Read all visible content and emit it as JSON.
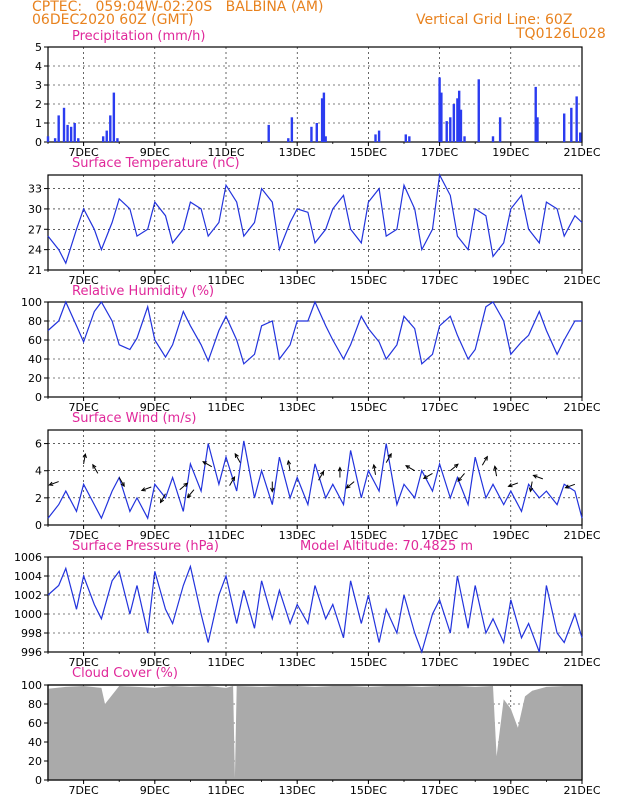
{
  "header": {
    "line1_left": "CPTEC:   059:04W-02:20S   BALBINA (AM)",
    "line2_left": "06DEC2020 60Z (GMT)",
    "line1_right": "Vertical Grid Line: 60Z",
    "line2_right": "TQ0126L028"
  },
  "panel_titles": {
    "precip": "Precipitation (mm/h)",
    "temp": "Surface Temperature (nC)",
    "rh": "Relative Humidity (%)",
    "wind": "Surface Wind (m/s)",
    "pressure": "Surface Pressure (hPa)",
    "altitude": "Model Altitude: 70.4825 m",
    "cloud": "Cloud Cover (%)"
  },
  "colors": {
    "series": "#2233dd",
    "bar": "#2b3cf0",
    "cloud": "#aaaaaa",
    "header": "#e8821e",
    "title": "#e0289a"
  },
  "chart_data": [
    {
      "type": "bar",
      "title": "Precipitation (mm/h)",
      "x": [
        "6DEC",
        "6.2",
        "6.3",
        "6.45",
        "6.55",
        "6.65",
        "6.75",
        "6.85",
        "7.55",
        "7.65",
        "7.75",
        "7.85",
        "7.95",
        "12.2",
        "12.75",
        "12.85",
        "13.4",
        "13.55",
        "13.7",
        "13.75",
        "13.8",
        "15.2",
        "15.3",
        "16.05",
        "16.15",
        "17.0",
        "17.05",
        "17.2",
        "17.3",
        "17.4",
        "17.5",
        "17.55",
        "17.6",
        "17.7",
        "18.1",
        "18.5",
        "18.7",
        "19.7",
        "19.75",
        "20.5",
        "20.7",
        "20.85",
        "20.95"
      ],
      "x_days": [
        6.0,
        6.2,
        6.3,
        6.45,
        6.55,
        6.65,
        6.75,
        6.85,
        7.55,
        7.65,
        7.75,
        7.85,
        7.95,
        12.2,
        12.75,
        12.85,
        13.4,
        13.55,
        13.7,
        13.75,
        13.8,
        15.2,
        15.3,
        16.05,
        16.15,
        17.0,
        17.05,
        17.2,
        17.3,
        17.4,
        17.5,
        17.55,
        17.6,
        17.7,
        18.1,
        18.5,
        18.7,
        19.7,
        19.75,
        20.5,
        20.7,
        20.85,
        20.95
      ],
      "values": [
        0.3,
        0.2,
        1.4,
        1.8,
        0.9,
        0.8,
        1.0,
        0.2,
        0.3,
        0.6,
        1.4,
        2.6,
        0.2,
        0.9,
        0.2,
        1.3,
        0.8,
        1.0,
        2.3,
        2.6,
        0.3,
        0.4,
        0.6,
        0.4,
        0.3,
        3.4,
        2.6,
        1.1,
        1.3,
        2.0,
        2.3,
        2.7,
        1.7,
        0.3,
        3.3,
        0.3,
        1.3,
        2.9,
        1.3,
        1.5,
        1.8,
        2.4,
        0.5
      ],
      "ylim": [
        0,
        5
      ],
      "yticks": [
        "0",
        "1",
        "2",
        "3",
        "4",
        "5"
      ]
    },
    {
      "type": "line",
      "title": "Surface Temperature (nC)",
      "x": [
        6.0,
        6.3,
        6.5,
        6.8,
        7.0,
        7.3,
        7.5,
        7.8,
        8.0,
        8.3,
        8.5,
        8.8,
        9.0,
        9.3,
        9.5,
        9.8,
        10.0,
        10.3,
        10.5,
        10.8,
        11.0,
        11.3,
        11.5,
        11.8,
        12.0,
        12.3,
        12.5,
        12.8,
        13.0,
        13.3,
        13.5,
        13.8,
        14.0,
        14.3,
        14.5,
        14.8,
        15.0,
        15.3,
        15.5,
        15.8,
        16.0,
        16.3,
        16.5,
        16.8,
        17.0,
        17.3,
        17.5,
        17.8,
        18.0,
        18.3,
        18.5,
        18.8,
        19.0,
        19.3,
        19.5,
        19.8,
        20.0,
        20.3,
        20.5,
        20.8,
        21.0
      ],
      "y": [
        26,
        24,
        22,
        27,
        30,
        27,
        24,
        28,
        31.5,
        30,
        26,
        27,
        31,
        29,
        25,
        27,
        31,
        30,
        26,
        28,
        33.5,
        31,
        26,
        28,
        33,
        31,
        24,
        28,
        30,
        29.5,
        25,
        27,
        30,
        32,
        27,
        25,
        31,
        33,
        26,
        27,
        33.5,
        30,
        24,
        27,
        35,
        32,
        26,
        24,
        30,
        29,
        23,
        25,
        30,
        32,
        27,
        25,
        31,
        30,
        26,
        29,
        28
      ],
      "ylim": [
        21,
        35
      ],
      "yticks": [
        "21",
        "24",
        "27",
        "30",
        "33"
      ]
    },
    {
      "type": "line",
      "title": "Relative Humidity (%)",
      "x": [
        6.0,
        6.3,
        6.5,
        6.8,
        7.0,
        7.3,
        7.5,
        7.8,
        8.0,
        8.3,
        8.5,
        8.8,
        9.0,
        9.3,
        9.5,
        9.8,
        10.0,
        10.3,
        10.5,
        10.8,
        11.0,
        11.3,
        11.5,
        11.8,
        12.0,
        12.3,
        12.5,
        12.8,
        13.0,
        13.3,
        13.5,
        13.8,
        14.0,
        14.3,
        14.5,
        14.8,
        15.0,
        15.3,
        15.5,
        15.8,
        16.0,
        16.3,
        16.5,
        16.8,
        17.0,
        17.3,
        17.5,
        17.8,
        18.0,
        18.3,
        18.5,
        18.8,
        19.0,
        19.3,
        19.5,
        19.8,
        20.0,
        20.3,
        20.5,
        20.8,
        21.0
      ],
      "y": [
        70,
        80,
        100,
        75,
        58,
        90,
        100,
        80,
        55,
        50,
        62,
        95,
        60,
        42,
        55,
        90,
        75,
        55,
        38,
        70,
        85,
        60,
        35,
        45,
        75,
        80,
        40,
        55,
        80,
        80,
        100,
        75,
        60,
        40,
        55,
        85,
        72,
        58,
        40,
        55,
        85,
        72,
        35,
        45,
        75,
        85,
        65,
        40,
        50,
        95,
        100,
        80,
        45,
        58,
        65,
        90,
        70,
        45,
        60,
        80,
        80
      ],
      "ylim": [
        0,
        100
      ],
      "yticks": [
        "0",
        "20",
        "40",
        "60",
        "80",
        "100"
      ]
    },
    {
      "type": "line",
      "title": "Surface Wind (m/s)",
      "x": [
        6.0,
        6.3,
        6.5,
        6.8,
        7.0,
        7.3,
        7.5,
        7.8,
        8.0,
        8.3,
        8.5,
        8.8,
        9.0,
        9.3,
        9.5,
        9.8,
        10.0,
        10.3,
        10.5,
        10.8,
        11.0,
        11.3,
        11.5,
        11.8,
        12.0,
        12.3,
        12.5,
        12.8,
        13.0,
        13.3,
        13.5,
        13.8,
        14.0,
        14.3,
        14.5,
        14.8,
        15.0,
        15.3,
        15.5,
        15.8,
        16.0,
        16.3,
        16.5,
        16.8,
        17.0,
        17.3,
        17.5,
        17.8,
        18.0,
        18.3,
        18.5,
        18.8,
        19.0,
        19.3,
        19.5,
        19.8,
        20.0,
        20.3,
        20.5,
        20.8,
        21.0
      ],
      "y": [
        0.5,
        1.5,
        2.5,
        1.0,
        3.0,
        1.5,
        0.5,
        2.5,
        3.5,
        1.0,
        2.0,
        0.5,
        3.0,
        2.0,
        3.5,
        1.0,
        4.5,
        2.5,
        6.0,
        3.0,
        5.0,
        2.5,
        6.2,
        2.0,
        4.0,
        1.5,
        5.0,
        2.0,
        3.5,
        1.5,
        4.5,
        2.0,
        3.0,
        1.5,
        5.5,
        2.0,
        4.0,
        2.5,
        6.0,
        1.5,
        3.0,
        2.0,
        4.0,
        2.5,
        4.5,
        2.0,
        3.5,
        1.5,
        5.0,
        2.0,
        3.0,
        1.5,
        2.5,
        1.0,
        3.0,
        2.0,
        2.5,
        1.5,
        3.0,
        2.5,
        0.5
      ],
      "ylim": [
        0,
        7
      ],
      "yticks": [
        "0",
        "2",
        "4",
        "6"
      ]
    },
    {
      "type": "line",
      "title": "Surface Pressure (hPa)",
      "x": [
        6.0,
        6.3,
        6.5,
        6.8,
        7.0,
        7.3,
        7.5,
        7.8,
        8.0,
        8.3,
        8.5,
        8.8,
        9.0,
        9.3,
        9.5,
        9.8,
        10.0,
        10.3,
        10.5,
        10.8,
        11.0,
        11.3,
        11.5,
        11.8,
        12.0,
        12.3,
        12.5,
        12.8,
        13.0,
        13.3,
        13.5,
        13.8,
        14.0,
        14.3,
        14.5,
        14.8,
        15.0,
        15.3,
        15.5,
        15.8,
        16.0,
        16.3,
        16.5,
        16.8,
        17.0,
        17.3,
        17.5,
        17.8,
        18.0,
        18.3,
        18.5,
        18.8,
        19.0,
        19.3,
        19.5,
        19.8,
        20.0,
        20.3,
        20.5,
        20.8,
        21.0
      ],
      "y": [
        1002,
        1003,
        1004.8,
        1000.5,
        1004,
        1001,
        999.5,
        1003.5,
        1004.5,
        1000,
        1003,
        998,
        1004.5,
        1000.5,
        999,
        1003,
        1005,
        1000,
        997,
        1002,
        1004,
        999,
        1002.5,
        998.5,
        1003.5,
        999.5,
        1002.5,
        999,
        1001,
        999,
        1003,
        999.5,
        1001,
        997.5,
        1003.5,
        999,
        1002,
        997,
        1000.5,
        998,
        1002,
        998,
        996,
        1000,
        1001.5,
        998,
        1004,
        998.5,
        1003,
        998,
        999.5,
        997,
        1001.5,
        997.5,
        999,
        996,
        1003,
        998,
        997,
        1000,
        997.5
      ],
      "ylim": [
        996,
        1006
      ],
      "yticks": [
        "996",
        "998",
        "1000",
        "1002",
        "1004",
        "1006"
      ]
    },
    {
      "type": "area",
      "title": "Cloud Cover (%)",
      "x": [
        6.0,
        6.5,
        7.0,
        7.5,
        7.6,
        8.0,
        8.5,
        9.0,
        9.5,
        10.0,
        10.5,
        11.0,
        11.2,
        11.25,
        11.3,
        12.0,
        12.5,
        13.0,
        13.5,
        14.0,
        14.5,
        15.0,
        15.5,
        16.0,
        16.5,
        17.0,
        17.5,
        18.0,
        18.5,
        18.6,
        18.8,
        19.0,
        19.2,
        19.4,
        19.6,
        20.0,
        20.5,
        21.0
      ],
      "y": [
        96,
        98,
        99,
        97,
        80,
        99,
        98,
        97,
        99,
        98,
        99,
        97,
        99,
        2,
        99,
        98,
        99,
        99,
        98,
        99,
        99,
        98,
        99,
        99,
        98,
        99,
        99,
        98,
        99,
        25,
        85,
        75,
        55,
        88,
        94,
        98,
        99,
        99
      ],
      "ylim": [
        0,
        100
      ],
      "yticks": [
        "0",
        "20",
        "40",
        "60",
        "80",
        "100"
      ]
    }
  ],
  "x_axis": {
    "start": 6.0,
    "end": 21.0,
    "tick_days": [
      7,
      9,
      11,
      13,
      15,
      17,
      19,
      21
    ],
    "tick_labels": [
      "7DEC",
      "9DEC",
      "11DEC",
      "13DEC",
      "15DEC",
      "17DEC",
      "19DEC",
      "21DEC"
    ]
  }
}
